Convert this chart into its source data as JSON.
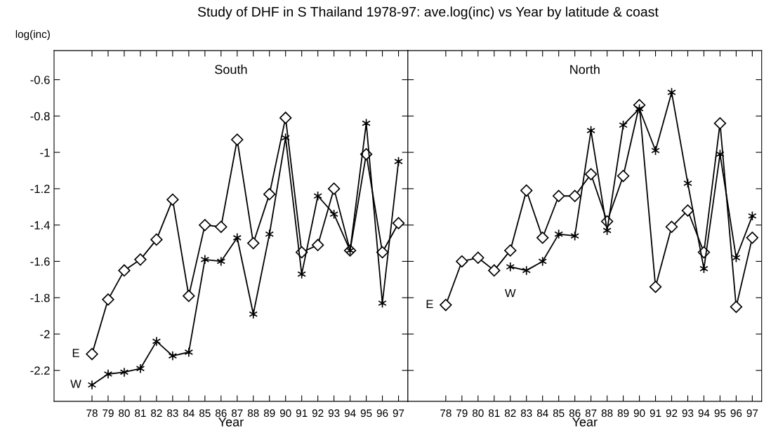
{
  "chart_data": [
    {
      "type": "line",
      "title": "Study of DHF in S Thailand 1978-97: ave.log(inc) vs Year by latitude & coast",
      "subtitle": "South",
      "xlabel": "Year",
      "ylabel": "log(inc)",
      "categories": [
        "78",
        "79",
        "80",
        "81",
        "82",
        "83",
        "84",
        "85",
        "86",
        "87",
        "88",
        "89",
        "90",
        "91",
        "92",
        "93",
        "94",
        "95",
        "96",
        "97"
      ],
      "series": [
        {
          "name": "E",
          "color": "#000000",
          "marker": "diamond",
          "values": [
            -2.11,
            -1.81,
            -1.65,
            -1.59,
            -1.48,
            -1.26,
            -1.79,
            -1.4,
            -1.41,
            -0.93,
            -1.5,
            -1.23,
            -0.81,
            -1.55,
            -1.51,
            -1.2,
            -1.54,
            -1.01,
            -1.55,
            -1.39
          ]
        },
        {
          "name": "W",
          "color": "#000000",
          "marker": "cross",
          "values": [
            -2.28,
            -2.22,
            -2.21,
            -2.19,
            -2.04,
            -2.12,
            -2.1,
            -1.59,
            -1.6,
            -1.47,
            -1.89,
            -1.45,
            -0.92,
            -1.67,
            -1.24,
            -1.34,
            -1.54,
            -0.84,
            -1.83,
            -1.05
          ]
        }
      ],
      "ylim": [
        -2.37,
        -0.44
      ],
      "yticks": [
        -2.2,
        -2,
        -1.8,
        -1.6,
        -1.4,
        -1.2,
        -1,
        -0.8,
        -0.6
      ],
      "grid": false,
      "legend": "left"
    },
    {
      "type": "line",
      "subtitle": "North",
      "xlabel": "Year",
      "categories": [
        "78",
        "79",
        "80",
        "81",
        "82",
        "83",
        "84",
        "85",
        "86",
        "87",
        "88",
        "89",
        "90",
        "91",
        "92",
        "93",
        "94",
        "95",
        "96",
        "97"
      ],
      "series": [
        {
          "name": "E",
          "color": "#000000",
          "marker": "diamond",
          "values": [
            -1.84,
            -1.6,
            -1.58,
            -1.65,
            -1.54,
            -1.21,
            -1.47,
            -1.24,
            -1.24,
            -1.12,
            -1.38,
            -1.13,
            -0.74,
            -1.74,
            -1.41,
            -1.32,
            -1.55,
            -0.84,
            -1.85,
            -1.47
          ]
        },
        {
          "name": "W",
          "color": "#000000",
          "marker": "cross",
          "values": [
            null,
            null,
            null,
            null,
            -1.63,
            -1.65,
            -1.6,
            -1.45,
            -1.46,
            -0.88,
            -1.43,
            -0.85,
            -0.76,
            -0.99,
            -0.67,
            -1.17,
            -1.64,
            -1.01,
            -1.58,
            -1.35
          ]
        }
      ],
      "ylim": [
        -2.37,
        -0.44
      ],
      "yticks": [
        -2.2,
        -2,
        -1.8,
        -1.6,
        -1.4,
        -1.2,
        -1,
        -0.8,
        -0.6
      ],
      "tick_labels": "x",
      "grid": false,
      "legend": "left"
    }
  ]
}
